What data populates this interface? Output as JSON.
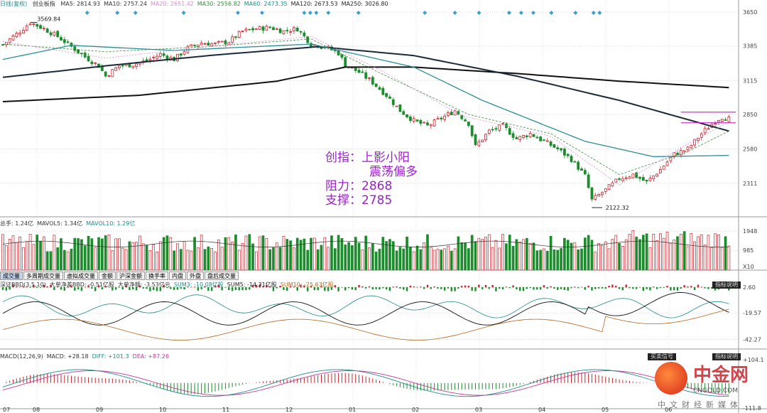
{
  "header": {
    "mode": "日线(复权)",
    "name": "创业板指",
    "ma": [
      {
        "label": "MA5: 2814.93",
        "color": "#333333"
      },
      {
        "label": "MA10: 2757.24",
        "color": "#333333"
      },
      {
        "label": "MA20: 2651.42",
        "color": "#d98fd4"
      },
      {
        "label": "MA30: 2556.82",
        "color": "#3a8a3a"
      },
      {
        "label": "MA60: 2473.35",
        "color": "#1f8a8a"
      },
      {
        "label": "MA120: 2673.53",
        "color": "#222222"
      },
      {
        "label": "MA250: 3026.80",
        "color": "#222222"
      }
    ]
  },
  "vol_header": [
    {
      "label": "总手: 1.24亿",
      "color": "#333333"
    },
    {
      "label": "MAVOL5: 1.34亿",
      "color": "#333333"
    },
    {
      "label": "MAVOL10: 1.29亿",
      "color": "#1f8a8a"
    }
  ],
  "bbd_header": [
    {
      "label": "深证BBD(3,5,10)",
      "color": "#333333"
    },
    {
      "label": "大单净差BBD: -0.51亿股",
      "color": "#333333"
    },
    {
      "label": "大单净额: -3.53亿元",
      "color": "#333333"
    },
    {
      "label": "SUM3: -10.08亿股",
      "color": "#1f8a8a"
    },
    {
      "label": "SUM5: -14.31亿股",
      "color": "#222222"
    },
    {
      "label": "SUM10: -25.63亿股",
      "color": "#b5651d"
    }
  ],
  "macd_header": [
    {
      "label": "MACD(12,26,9)",
      "color": "#333333"
    },
    {
      "label": "MACD: +28.18",
      "color": "#333333"
    },
    {
      "label": "DIFF: +101.3",
      "color": "#1f8a8a"
    },
    {
      "label": "DEA: +87.26",
      "color": "#c0399c"
    }
  ],
  "tabs": [
    "成交量",
    "多周期成交量",
    "虚拟成交量",
    "金额",
    "沪深金额",
    "换手率",
    "内盘",
    "外盘",
    "盘后成交量"
  ],
  "panel_buttons": {
    "bbd": "指标说明",
    "macd_left": "买卖信号",
    "macd_mid": "",
    "macd_right": "指标说明"
  },
  "annotation": {
    "line1": "创指：上影小阳",
    "line2": "震荡偏多",
    "line3": "阻力：2868",
    "line4": "支撑：2785"
  },
  "watermark": {
    "cn": "中金网",
    "en": "CNGOLD.COM",
    "sub": "中文财经新媒体"
  },
  "colors": {
    "up": "#c8242c",
    "down": "#1c8c2c",
    "ma250": "#111111",
    "ma120": "#1a2a3a",
    "ma60": "#2a8c96",
    "annot": "#9b22c8"
  },
  "chart_data": [
    {
      "type": "candlestick",
      "title": "创业板指",
      "x_ticks": [
        "08",
        "09",
        "10",
        "11",
        "12",
        "01",
        "02",
        "03",
        "04",
        "05",
        "06"
      ],
      "y_ticks": [
        3650,
        3385,
        3115,
        2850,
        2580,
        2311
      ],
      "ylim": [
        2050,
        3700
      ],
      "labels": [
        "3569.84",
        "2122.32"
      ],
      "resistance_lines": [
        2868,
        2785
      ],
      "close_points": [
        [
          0,
          3395
        ],
        [
          5,
          3500
        ],
        [
          8,
          3569
        ],
        [
          12,
          3520
        ],
        [
          16,
          3460
        ],
        [
          20,
          3380
        ],
        [
          24,
          3300
        ],
        [
          28,
          3230
        ],
        [
          30,
          3150
        ],
        [
          34,
          3230
        ],
        [
          38,
          3240
        ],
        [
          42,
          3270
        ],
        [
          46,
          3320
        ],
        [
          50,
          3280
        ],
        [
          54,
          3370
        ],
        [
          58,
          3410
        ],
        [
          62,
          3400
        ],
        [
          66,
          3420
        ],
        [
          70,
          3500
        ],
        [
          74,
          3520
        ],
        [
          78,
          3530
        ],
        [
          82,
          3500
        ],
        [
          86,
          3520
        ],
        [
          90,
          3400
        ],
        [
          94,
          3380
        ],
        [
          98,
          3330
        ],
        [
          100,
          3240
        ],
        [
          104,
          3180
        ],
        [
          108,
          3100
        ],
        [
          112,
          3000
        ],
        [
          116,
          2880
        ],
        [
          120,
          2800
        ],
        [
          124,
          2760
        ],
        [
          128,
          2820
        ],
        [
          132,
          2880
        ],
        [
          136,
          2780
        ],
        [
          138,
          2600
        ],
        [
          142,
          2720
        ],
        [
          146,
          2760
        ],
        [
          150,
          2660
        ],
        [
          154,
          2700
        ],
        [
          158,
          2640
        ],
        [
          162,
          2580
        ],
        [
          166,
          2500
        ],
        [
          170,
          2370
        ],
        [
          172,
          2180
        ],
        [
          176,
          2260
        ],
        [
          180,
          2350
        ],
        [
          184,
          2380
        ],
        [
          188,
          2320
        ],
        [
          192,
          2420
        ],
        [
          196,
          2540
        ],
        [
          200,
          2580
        ],
        [
          204,
          2700
        ],
        [
          208,
          2800
        ],
        [
          210,
          2830
        ],
        [
          212,
          2815
        ]
      ],
      "series": [
        {
          "name": "MA250",
          "points": [
            [
              0,
              2950
            ],
            [
              40,
              3000
            ],
            [
              80,
              3110
            ],
            [
              100,
              3220
            ],
            [
              120,
              3220
            ],
            [
              150,
              3170
            ],
            [
              180,
              3110
            ],
            [
              212,
              3060
            ]
          ]
        },
        {
          "name": "MA120",
          "points": [
            [
              0,
              3140
            ],
            [
              30,
              3230
            ],
            [
              60,
              3310
            ],
            [
              92,
              3380
            ],
            [
              120,
              3310
            ],
            [
              150,
              3150
            ],
            [
              180,
              2960
            ],
            [
              212,
              2720
            ]
          ]
        },
        {
          "name": "MA60",
          "points": [
            [
              0,
              3280
            ],
            [
              20,
              3390
            ],
            [
              50,
              3350
            ],
            [
              90,
              3400
            ],
            [
              120,
              3220
            ],
            [
              140,
              2960
            ],
            [
              170,
              2640
            ],
            [
              190,
              2520
            ],
            [
              212,
              2530
            ]
          ]
        },
        {
          "name": "MA30",
          "points": [
            [
              0,
              3400
            ],
            [
              30,
              3340
            ],
            [
              60,
              3380
            ],
            [
              90,
              3440
            ],
            [
              112,
              3150
            ],
            [
              136,
              2850
            ],
            [
              160,
              2700
            ],
            [
              180,
              2380
            ],
            [
              200,
              2560
            ],
            [
              212,
              2720
            ]
          ]
        },
        {
          "name": "MA20",
          "points": [
            [
              0,
              3420
            ],
            [
              30,
              3290
            ],
            [
              60,
              3380
            ],
            [
              90,
              3460
            ],
            [
              110,
              3200
            ],
            [
              134,
              2840
            ],
            [
              160,
              2680
            ],
            [
              180,
              2300
            ],
            [
              200,
              2620
            ],
            [
              212,
              2790
            ]
          ]
        }
      ]
    },
    {
      "type": "bar",
      "title": "成交量",
      "y_ticks": [
        1948,
        985
      ],
      "unit": "X10"
    },
    {
      "type": "bar",
      "title": "深证BBD",
      "y_ticks": [
        2.6,
        -19.57,
        -42.27
      ]
    },
    {
      "type": "bar",
      "title": "MACD",
      "y_ticks": [
        104.1,
        -111.8
      ],
      "x_ticks": [
        "07",
        "08",
        "09",
        "10",
        "11",
        "12",
        "01",
        "02",
        "03",
        "04",
        "05",
        "06"
      ]
    }
  ]
}
